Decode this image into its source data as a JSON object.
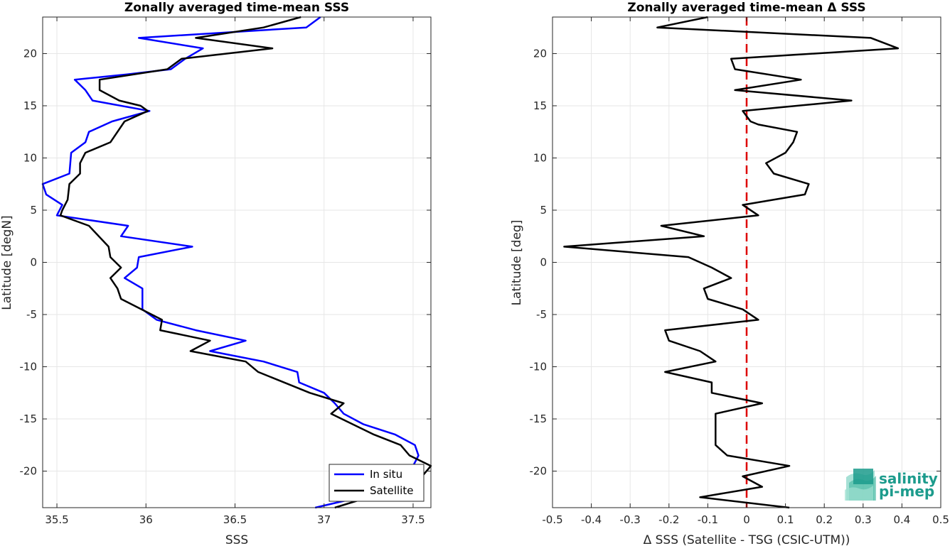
{
  "chart_data": [
    {
      "type": "line",
      "title": "Zonally averaged time-mean SSS",
      "xlabel": "SSS",
      "ylabel": "Latitude [degN]",
      "xlim": [
        35.42,
        37.6
      ],
      "ylim": [
        -23.5,
        23.5
      ],
      "xticks": [
        35.5,
        36,
        36.5,
        37,
        37.5
      ],
      "xtick_labels": [
        "35.5",
        "36",
        "36.5",
        "37",
        "37.5"
      ],
      "yticks": [
        -20,
        -15,
        -10,
        -5,
        0,
        5,
        10,
        15,
        20
      ],
      "ytick_labels": [
        "-20",
        "-15",
        "-10",
        "-5",
        "0",
        "5",
        "10",
        "15",
        "20"
      ],
      "grid": true,
      "legend": "bottom-right",
      "series": [
        {
          "name": "In situ",
          "color": "#0000ff",
          "points": [
            [
              36.98,
              23.5
            ],
            [
              36.9,
              22.5
            ],
            [
              35.96,
              21.5
            ],
            [
              36.32,
              20.5
            ],
            [
              36.22,
              19.5
            ],
            [
              36.14,
              18.5
            ],
            [
              35.89,
              18
            ],
            [
              35.6,
              17.5
            ],
            [
              35.66,
              16.5
            ],
            [
              35.7,
              15.5
            ],
            [
              36.02,
              14.5
            ],
            [
              35.81,
              13.5
            ],
            [
              35.68,
              12.5
            ],
            [
              35.66,
              11.5
            ],
            [
              35.58,
              10.5
            ],
            [
              35.57,
              8.5
            ],
            [
              35.42,
              7.5
            ],
            [
              35.44,
              6.5
            ],
            [
              35.53,
              5.5
            ],
            [
              35.5,
              4.5
            ],
            [
              35.9,
              3.5
            ],
            [
              35.86,
              2.5
            ],
            [
              36.26,
              1.5
            ],
            [
              35.96,
              0.5
            ],
            [
              35.95,
              -0.5
            ],
            [
              35.88,
              -1.5
            ],
            [
              35.98,
              -2.5
            ],
            [
              35.98,
              -4.5
            ],
            [
              36.06,
              -5.5
            ],
            [
              36.28,
              -6.5
            ],
            [
              36.56,
              -7.5
            ],
            [
              36.36,
              -8.5
            ],
            [
              36.66,
              -9.5
            ],
            [
              36.85,
              -10.5
            ],
            [
              36.86,
              -11.5
            ],
            [
              37.0,
              -12.5
            ],
            [
              37.06,
              -13.5
            ],
            [
              37.11,
              -14.5
            ],
            [
              37.22,
              -15.5
            ],
            [
              37.4,
              -16.5
            ],
            [
              37.51,
              -17.5
            ],
            [
              37.53,
              -18.5
            ],
            [
              37.5,
              -19.5
            ],
            [
              37.45,
              -21.5
            ],
            [
              36.95,
              -23.5
            ]
          ]
        },
        {
          "name": "Satellite",
          "color": "#000000",
          "points": [
            [
              36.87,
              23.5
            ],
            [
              36.66,
              22.5
            ],
            [
              36.28,
              21.5
            ],
            [
              36.71,
              20.5
            ],
            [
              36.2,
              19.5
            ],
            [
              36.12,
              18.5
            ],
            [
              35.74,
              17.5
            ],
            [
              35.74,
              16.5
            ],
            [
              35.85,
              15.5
            ],
            [
              35.97,
              15
            ],
            [
              36.01,
              14.5
            ],
            [
              35.88,
              13.5
            ],
            [
              35.8,
              11.5
            ],
            [
              35.66,
              10.5
            ],
            [
              35.63,
              9.5
            ],
            [
              35.63,
              8.5
            ],
            [
              35.57,
              7.5
            ],
            [
              35.56,
              6
            ],
            [
              35.53,
              5
            ],
            [
              35.52,
              4.5
            ],
            [
              35.68,
              3.5
            ],
            [
              35.79,
              1.5
            ],
            [
              35.8,
              0.5
            ],
            [
              35.86,
              -0.5
            ],
            [
              35.8,
              -1.5
            ],
            [
              35.84,
              -2.5
            ],
            [
              35.86,
              -3.5
            ],
            [
              36.09,
              -5.5
            ],
            [
              36.08,
              -6.5
            ],
            [
              36.36,
              -7.5
            ],
            [
              36.25,
              -8.5
            ],
            [
              36.56,
              -9.5
            ],
            [
              36.63,
              -10.5
            ],
            [
              36.92,
              -12.5
            ],
            [
              37.11,
              -13.5
            ],
            [
              37.04,
              -14.5
            ],
            [
              37.28,
              -16.5
            ],
            [
              37.43,
              -17.5
            ],
            [
              37.48,
              -18.5
            ],
            [
              37.6,
              -19.5
            ],
            [
              37.55,
              -20.5
            ],
            [
              37.44,
              -21.5
            ],
            [
              37.06,
              -23.5
            ]
          ]
        }
      ]
    },
    {
      "type": "line",
      "title": "Zonally averaged time-mean Δ SSS",
      "xlabel": "Δ SSS (Satellite - TSG (CSIC-UTM))",
      "ylabel": "Latitude [deg]",
      "xlim": [
        -0.5,
        0.5
      ],
      "ylim": [
        -23.5,
        23.5
      ],
      "xticks": [
        -0.5,
        -0.4,
        -0.3,
        -0.2,
        -0.1,
        0,
        0.1,
        0.2,
        0.3,
        0.4,
        0.5
      ],
      "xtick_labels": [
        "-0.5",
        "-0.4",
        "-0.3",
        "-0.2",
        "-0.1",
        "0",
        "0.1",
        "0.2",
        "0.3",
        "0.4",
        "0.5"
      ],
      "yticks": [
        -20,
        -15,
        -10,
        -5,
        0,
        5,
        10,
        15,
        20
      ],
      "ytick_labels": [
        "-20",
        "-15",
        "-10",
        "-5",
        "0",
        "5",
        "10",
        "15",
        "20"
      ],
      "grid": true,
      "reference_line": {
        "x": 0,
        "color": "#dd0000",
        "style": "dashed"
      },
      "series": [
        {
          "name": "",
          "color": "#000000",
          "points": [
            [
              -0.1,
              23.5
            ],
            [
              -0.23,
              22.5
            ],
            [
              0.32,
              21.5
            ],
            [
              0.39,
              20.5
            ],
            [
              -0.04,
              19.5
            ],
            [
              -0.03,
              18.5
            ],
            [
              0.14,
              17.5
            ],
            [
              -0.03,
              16.5
            ],
            [
              0.27,
              15.5
            ],
            [
              -0.01,
              14.5
            ],
            [
              0.01,
              13.5
            ],
            [
              0.03,
              13.2
            ],
            [
              0.13,
              12.5
            ],
            [
              0.12,
              11.5
            ],
            [
              0.1,
              10.5
            ],
            [
              0.05,
              9.5
            ],
            [
              0.07,
              8.5
            ],
            [
              0.16,
              7.5
            ],
            [
              0.15,
              6.5
            ],
            [
              -0.01,
              5.5
            ],
            [
              0.03,
              4.5
            ],
            [
              -0.22,
              3.5
            ],
            [
              -0.11,
              2.5
            ],
            [
              -0.47,
              1.5
            ],
            [
              -0.15,
              0.5
            ],
            [
              -0.09,
              -0.5
            ],
            [
              -0.04,
              -1.5
            ],
            [
              -0.11,
              -2.5
            ],
            [
              -0.1,
              -3.5
            ],
            [
              -0.01,
              -4.5
            ],
            [
              0.03,
              -5.5
            ],
            [
              -0.21,
              -6.5
            ],
            [
              -0.2,
              -7.5
            ],
            [
              -0.12,
              -8.5
            ],
            [
              -0.08,
              -9.5
            ],
            [
              -0.21,
              -10.5
            ],
            [
              -0.09,
              -11.5
            ],
            [
              -0.09,
              -12.5
            ],
            [
              0.04,
              -13.5
            ],
            [
              -0.08,
              -14.5
            ],
            [
              -0.08,
              -15.5
            ],
            [
              -0.08,
              -16.5
            ],
            [
              -0.08,
              -17.5
            ],
            [
              -0.05,
              -18.5
            ],
            [
              0.11,
              -19.5
            ],
            [
              -0.01,
              -20.5
            ],
            [
              0.04,
              -21.5
            ],
            [
              -0.12,
              -22.5
            ],
            [
              0.11,
              -23.5
            ]
          ]
        }
      ]
    }
  ],
  "logo": {
    "line1": "salinity",
    "line2": "pi-mep",
    "color": "#1c9b8c"
  }
}
